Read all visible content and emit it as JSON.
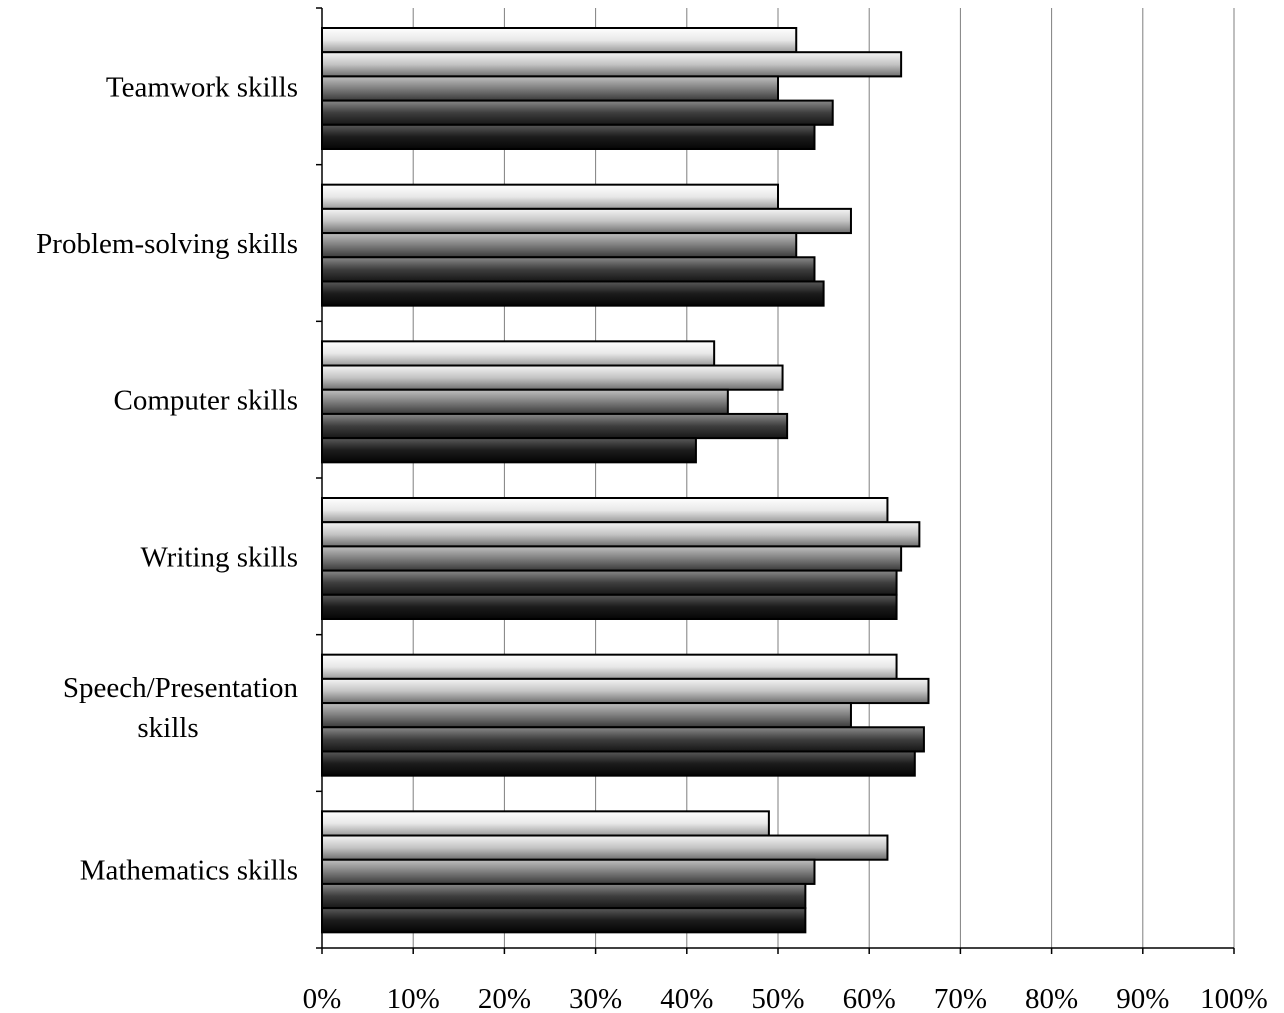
{
  "chart_data": {
    "type": "bar",
    "orientation": "horizontal",
    "title": "",
    "xlabel": "",
    "ylabel": "",
    "xlim": [
      0,
      100
    ],
    "x_ticks": [
      "0%",
      "10%",
      "20%",
      "30%",
      "40%",
      "50%",
      "60%",
      "70%",
      "80%",
      "90%",
      "100%"
    ],
    "grid": true,
    "legend": "none",
    "categories": [
      "Teamwork skills",
      "Problem-solving skills",
      "Computer skills",
      "Writing skills",
      "Speech/Presentation skills",
      "Mathematics skills"
    ],
    "series": [
      {
        "color": "#f2f2f2",
        "values": [
          52,
          50,
          43,
          62,
          63,
          49
        ]
      },
      {
        "color": "#d0d0d0",
        "values": [
          63.5,
          58,
          50.5,
          65.5,
          66.5,
          62
        ]
      },
      {
        "color": "#8a8a8a",
        "values": [
          50,
          52,
          44.5,
          63.5,
          58,
          54
        ]
      },
      {
        "color": "#444444",
        "values": [
          56,
          54,
          51,
          63,
          66,
          53
        ]
      },
      {
        "color": "#1e1e1e",
        "values": [
          54,
          55,
          41,
          63,
          65,
          53
        ]
      }
    ]
  }
}
